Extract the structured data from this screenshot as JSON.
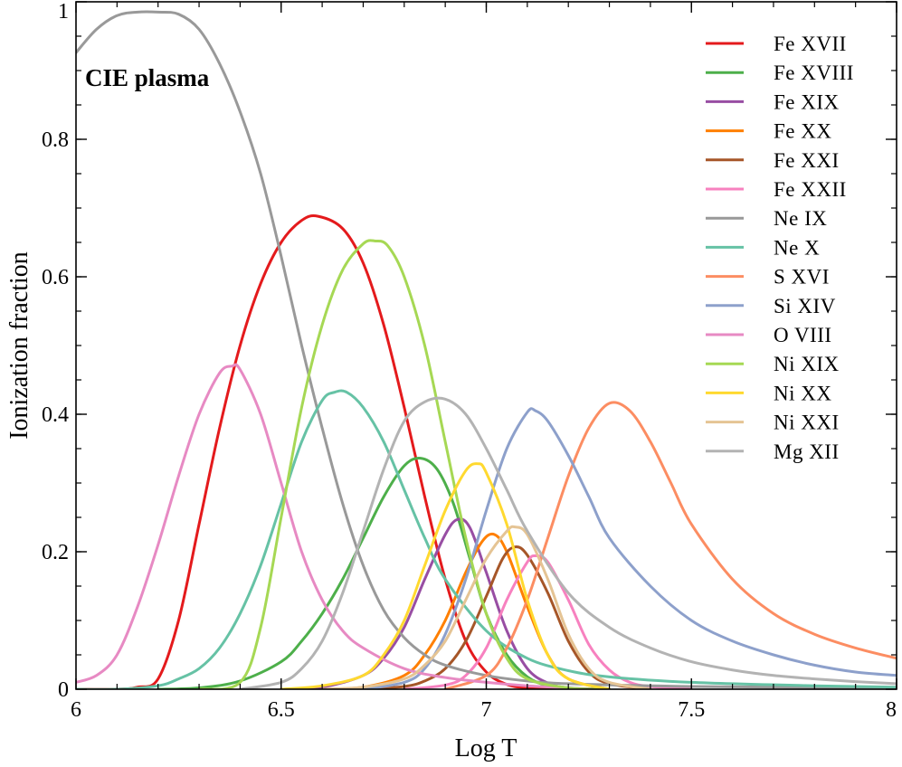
{
  "chart_data": {
    "type": "line",
    "title": "",
    "annotation": "CIE  plasma",
    "xlabel": "Log  T",
    "ylabel": "Ionization  fraction",
    "xlim": [
      6,
      8
    ],
    "ylim": [
      0,
      1
    ],
    "xticks": [
      6,
      6.5,
      7,
      7.5,
      8
    ],
    "xtick_labels": [
      "6",
      "6.5",
      "7",
      "7.5",
      "8"
    ],
    "yticks": [
      0,
      0.2,
      0.4,
      0.6,
      0.8,
      1
    ],
    "ytick_labels": [
      "0",
      "0.2",
      "0.4",
      "0.6",
      "0.8",
      "1"
    ],
    "grid": false,
    "legend_position": "top-right",
    "series": [
      {
        "name": "Fe  XVII",
        "color": "#e41a1c",
        "x": [
          6.0,
          6.1,
          6.15,
          6.2,
          6.25,
          6.3,
          6.35,
          6.4,
          6.45,
          6.5,
          6.55,
          6.59,
          6.65,
          6.7,
          6.75,
          6.8,
          6.85,
          6.9,
          6.95,
          7.0,
          7.05,
          7.1,
          7.2
        ],
        "y": [
          0.0,
          0.0,
          0.003,
          0.015,
          0.1,
          0.24,
          0.38,
          0.5,
          0.59,
          0.65,
          0.682,
          0.688,
          0.67,
          0.62,
          0.53,
          0.41,
          0.28,
          0.16,
          0.07,
          0.025,
          0.007,
          0.002,
          0.0
        ]
      },
      {
        "name": "Fe  XVIII",
        "color": "#4daf4a",
        "x": [
          6.2,
          6.3,
          6.4,
          6.5,
          6.55,
          6.6,
          6.65,
          6.7,
          6.75,
          6.8,
          6.84,
          6.88,
          6.92,
          6.96,
          7.0,
          7.05,
          7.1,
          7.15,
          7.2,
          7.3
        ],
        "y": [
          0.0,
          0.002,
          0.012,
          0.04,
          0.07,
          0.11,
          0.16,
          0.22,
          0.28,
          0.325,
          0.336,
          0.32,
          0.27,
          0.19,
          0.11,
          0.05,
          0.018,
          0.005,
          0.001,
          0.0
        ]
      },
      {
        "name": "Fe  XIX",
        "color": "#984ea3",
        "x": [
          6.5,
          6.6,
          6.7,
          6.75,
          6.8,
          6.85,
          6.9,
          6.93,
          6.96,
          7.0,
          7.05,
          7.1,
          7.15,
          7.2,
          7.3
        ],
        "y": [
          0.0,
          0.003,
          0.02,
          0.045,
          0.09,
          0.16,
          0.225,
          0.247,
          0.235,
          0.17,
          0.085,
          0.03,
          0.009,
          0.002,
          0.0
        ]
      },
      {
        "name": "Fe  XX",
        "color": "#ff7f00",
        "x": [
          6.6,
          6.7,
          6.8,
          6.85,
          6.9,
          6.95,
          6.99,
          7.02,
          7.05,
          7.1,
          7.15,
          7.2,
          7.3
        ],
        "y": [
          0.0,
          0.003,
          0.02,
          0.05,
          0.1,
          0.17,
          0.215,
          0.225,
          0.2,
          0.12,
          0.05,
          0.015,
          0.0
        ]
      },
      {
        "name": "Fe  XXI",
        "color": "#a65628",
        "x": [
          6.7,
          6.8,
          6.85,
          6.9,
          6.95,
          7.0,
          7.04,
          7.07,
          7.1,
          7.15,
          7.2,
          7.25,
          7.3,
          7.4
        ],
        "y": [
          0.0,
          0.004,
          0.012,
          0.03,
          0.07,
          0.135,
          0.19,
          0.207,
          0.195,
          0.14,
          0.07,
          0.025,
          0.008,
          0.0
        ]
      },
      {
        "name": "Fe  XXII",
        "color": "#f781bf",
        "x": [
          6.8,
          6.9,
          6.95,
          7.0,
          7.05,
          7.1,
          7.12,
          7.15,
          7.2,
          7.25,
          7.3,
          7.35,
          7.4,
          7.5
        ],
        "y": [
          0.0,
          0.006,
          0.02,
          0.06,
          0.13,
          0.185,
          0.194,
          0.185,
          0.13,
          0.065,
          0.028,
          0.01,
          0.004,
          0.0
        ]
      },
      {
        "name": "Ne  IX",
        "color": "#999999",
        "x": [
          6.0,
          6.05,
          6.1,
          6.15,
          6.2,
          6.25,
          6.3,
          6.35,
          6.4,
          6.45,
          6.5,
          6.55,
          6.6,
          6.65,
          6.7,
          6.75,
          6.8,
          6.85,
          6.9,
          7.0,
          7.1,
          7.2,
          7.5,
          8.0
        ],
        "y": [
          0.926,
          0.96,
          0.98,
          0.985,
          0.985,
          0.982,
          0.96,
          0.91,
          0.84,
          0.75,
          0.63,
          0.5,
          0.38,
          0.27,
          0.18,
          0.115,
          0.075,
          0.05,
          0.035,
          0.02,
          0.012,
          0.008,
          0.004,
          0.002
        ]
      },
      {
        "name": "Ne  X",
        "color": "#66c2a5",
        "x": [
          6.0,
          6.1,
          6.2,
          6.25,
          6.3,
          6.35,
          6.4,
          6.45,
          6.5,
          6.55,
          6.6,
          6.63,
          6.66,
          6.7,
          6.75,
          6.8,
          6.85,
          6.9,
          7.0,
          7.1,
          7.2,
          7.3,
          7.5,
          7.8,
          8.0
        ],
        "y": [
          0.0,
          0.0,
          0.005,
          0.015,
          0.03,
          0.06,
          0.11,
          0.18,
          0.27,
          0.36,
          0.42,
          0.432,
          0.432,
          0.41,
          0.36,
          0.29,
          0.22,
          0.16,
          0.085,
          0.045,
          0.027,
          0.018,
          0.01,
          0.005,
          0.003
        ]
      },
      {
        "name": "S  XVI",
        "color": "#fc8d62",
        "x": [
          6.9,
          7.0,
          7.05,
          7.1,
          7.15,
          7.2,
          7.25,
          7.3,
          7.35,
          7.4,
          7.45,
          7.5,
          7.6,
          7.7,
          7.8,
          7.9,
          8.0
        ],
        "y": [
          0.0,
          0.02,
          0.06,
          0.13,
          0.22,
          0.31,
          0.38,
          0.416,
          0.405,
          0.36,
          0.3,
          0.24,
          0.16,
          0.11,
          0.08,
          0.06,
          0.045
        ]
      },
      {
        "name": "Si  XIV",
        "color": "#8da0cb",
        "x": [
          6.7,
          6.8,
          6.85,
          6.9,
          6.95,
          7.0,
          7.05,
          7.1,
          7.12,
          7.15,
          7.2,
          7.25,
          7.3,
          7.4,
          7.5,
          7.6,
          7.7,
          7.8,
          7.9,
          8.0
        ],
        "y": [
          0.0,
          0.01,
          0.03,
          0.08,
          0.16,
          0.26,
          0.35,
          0.403,
          0.405,
          0.39,
          0.34,
          0.28,
          0.22,
          0.15,
          0.1,
          0.07,
          0.05,
          0.035,
          0.025,
          0.02
        ]
      },
      {
        "name": "O  VIII",
        "color": "#e78ac3",
        "x": [
          6.0,
          6.05,
          6.1,
          6.15,
          6.2,
          6.25,
          6.3,
          6.35,
          6.38,
          6.4,
          6.45,
          6.5,
          6.55,
          6.6,
          6.65,
          6.7,
          6.8,
          6.9,
          7.0,
          7.1,
          7.2
        ],
        "y": [
          0.01,
          0.02,
          0.05,
          0.12,
          0.21,
          0.31,
          0.4,
          0.46,
          0.47,
          0.465,
          0.4,
          0.3,
          0.2,
          0.13,
          0.085,
          0.06,
          0.03,
          0.017,
          0.01,
          0.005,
          0.002
        ]
      },
      {
        "name": "Ni  XIX",
        "color": "#a6d854",
        "x": [
          6.3,
          6.4,
          6.45,
          6.5,
          6.55,
          6.6,
          6.65,
          6.7,
          6.73,
          6.76,
          6.8,
          6.85,
          6.9,
          6.95,
          7.0,
          7.05,
          7.1,
          7.2,
          7.3
        ],
        "y": [
          0.0,
          0.01,
          0.09,
          0.25,
          0.41,
          0.53,
          0.61,
          0.648,
          0.652,
          0.645,
          0.6,
          0.5,
          0.36,
          0.22,
          0.11,
          0.045,
          0.015,
          0.002,
          0.0
        ]
      },
      {
        "name": "Ni  XX",
        "color": "#ffd92f",
        "x": [
          6.5,
          6.6,
          6.7,
          6.75,
          6.8,
          6.85,
          6.9,
          6.95,
          6.98,
          7.0,
          7.05,
          7.1,
          7.15,
          7.2,
          7.3
        ],
        "y": [
          0.0,
          0.005,
          0.02,
          0.05,
          0.1,
          0.18,
          0.26,
          0.318,
          0.328,
          0.315,
          0.24,
          0.13,
          0.05,
          0.015,
          0.0
        ]
      },
      {
        "name": "Ni  XXI",
        "color": "#e5c494",
        "x": [
          6.6,
          6.7,
          6.8,
          6.85,
          6.9,
          6.95,
          7.0,
          7.05,
          7.07,
          7.1,
          7.15,
          7.2,
          7.25,
          7.3,
          7.4
        ],
        "y": [
          0.0,
          0.003,
          0.015,
          0.035,
          0.07,
          0.13,
          0.19,
          0.23,
          0.236,
          0.225,
          0.16,
          0.08,
          0.03,
          0.01,
          0.0
        ]
      },
      {
        "name": "Mg  XII",
        "color": "#b3b3b3",
        "x": [
          6.4,
          6.5,
          6.55,
          6.6,
          6.65,
          6.7,
          6.75,
          6.8,
          6.85,
          6.9,
          6.95,
          7.0,
          7.05,
          7.1,
          7.2,
          7.3,
          7.4,
          7.5,
          7.6,
          7.7,
          7.8,
          7.9,
          8.0
        ],
        "y": [
          0.0,
          0.01,
          0.03,
          0.07,
          0.14,
          0.23,
          0.32,
          0.39,
          0.418,
          0.422,
          0.4,
          0.35,
          0.29,
          0.23,
          0.14,
          0.09,
          0.06,
          0.04,
          0.028,
          0.02,
          0.015,
          0.011,
          0.008
        ]
      }
    ]
  }
}
